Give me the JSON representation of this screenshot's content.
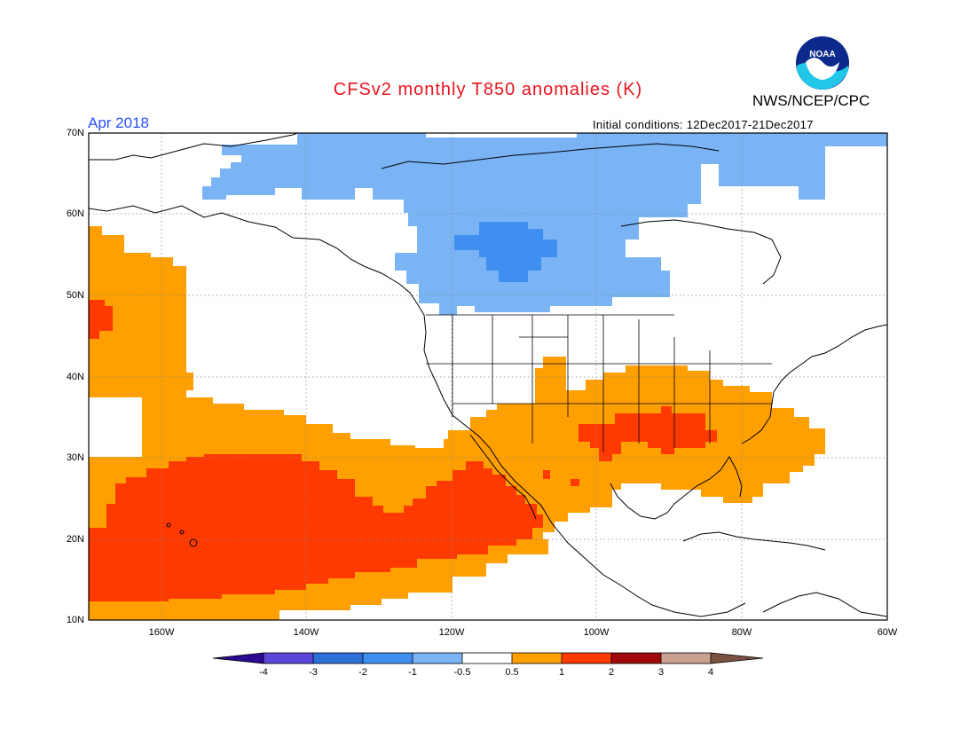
{
  "header": {
    "title": "CFSv2 monthly T850 anomalies (K)",
    "agency": "NWS/NCEP/CPC",
    "period": "Apr 2018",
    "initial_conditions": "Initial conditions: 12Dec2017-21Dec2017",
    "logo_text": "NOAA"
  },
  "axes": {
    "lat_ticks": [
      "70N",
      "60N",
      "50N",
      "40N",
      "30N",
      "20N",
      "10N"
    ],
    "lon_ticks": [
      "160W",
      "140W",
      "120W",
      "100W",
      "80W",
      "60W"
    ],
    "lat_range": [
      10,
      70
    ],
    "lon_range": [
      -170,
      -60
    ]
  },
  "colorbar": {
    "labels": [
      "-4",
      "-3",
      "-2",
      "-1",
      "-0.5",
      "0.5",
      "1",
      "2",
      "3",
      "4"
    ],
    "colors": [
      "#2a0a8f",
      "#5a46d8",
      "#2d6fd8",
      "#3f8ff0",
      "#7ab4f5",
      "#ffffff",
      "#ff9f00",
      "#ff3a00",
      "#a00a0a",
      "#caa090",
      "#7a5040"
    ]
  },
  "colors": {
    "blue_light": "#7ab4f5",
    "blue_mid": "#3f8ff0",
    "orange": "#ff9f00",
    "red_orange": "#ff3a00",
    "title_red": "#e8141e",
    "period_blue": "#2850ff"
  }
}
